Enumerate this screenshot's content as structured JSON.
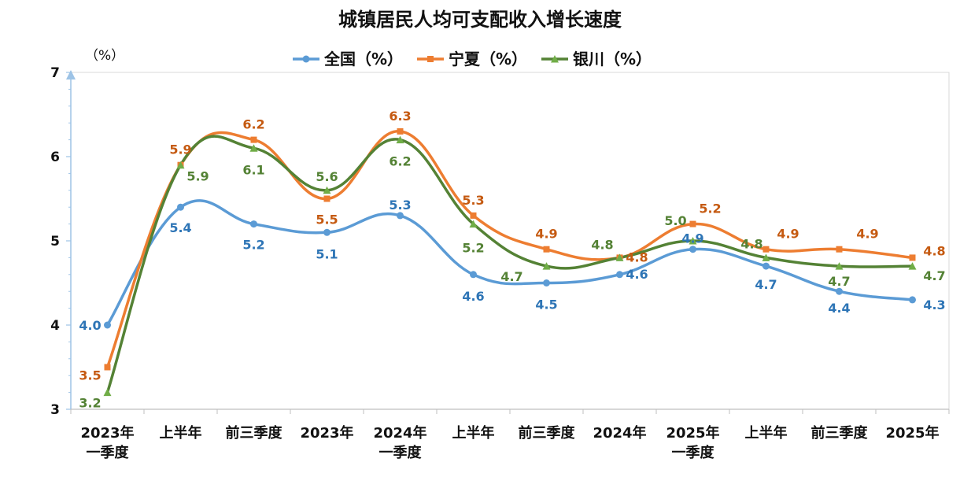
{
  "chart_data": {
    "type": "line",
    "title": "城镇居民人均可支配收入增长速度",
    "unit": "（%）",
    "ylim": [
      3,
      7
    ],
    "yticks": [
      "3",
      "4",
      "5",
      "6",
      "7"
    ],
    "categories": [
      [
        "2023年",
        "一季度"
      ],
      [
        "上半年"
      ],
      [
        "前三季度"
      ],
      [
        "2023年"
      ],
      [
        "2024年",
        "一季度"
      ],
      [
        "上半年"
      ],
      [
        "前三季度"
      ],
      [
        "2024年"
      ],
      [
        "2025年",
        "一季度"
      ],
      [
        "上半年"
      ],
      [
        "前三季度"
      ],
      [
        "2025年"
      ]
    ],
    "series": [
      {
        "name": "全国（%）",
        "color": "#5B9BD5",
        "label_color": "#2E75B6",
        "marker": "circle",
        "values": [
          4.0,
          5.4,
          5.2,
          5.1,
          5.3,
          4.6,
          4.5,
          4.6,
          4.9,
          4.7,
          4.4,
          4.3
        ],
        "labels": [
          "4.0",
          "5.4",
          "5.2",
          "5.1",
          "5.3",
          "4.6",
          "4.5",
          "4.6",
          "4.9",
          "4.7",
          "4.4",
          "4.3"
        ]
      },
      {
        "name": "宁夏（%）",
        "color": "#ED7D31",
        "label_color": "#C55A11",
        "marker": "square",
        "values": [
          3.5,
          5.9,
          6.2,
          5.5,
          6.3,
          5.3,
          4.9,
          4.8,
          5.2,
          4.9,
          4.9,
          4.8
        ],
        "labels": [
          "3.5",
          "5.9",
          "6.2",
          "5.5",
          "6.3",
          "5.3",
          "4.9",
          "4.8",
          "5.2",
          "4.9",
          "4.9",
          "4.8"
        ]
      },
      {
        "name": "银川（%）",
        "color": "#548235",
        "label_color": "#548235",
        "marker_color": "#70AD47",
        "marker": "triangle",
        "values": [
          3.2,
          5.9,
          6.1,
          5.6,
          6.2,
          5.2,
          4.7,
          4.8,
          5.0,
          4.8,
          4.7,
          4.7
        ],
        "labels": [
          "3.2",
          "5.9",
          "6.1",
          "5.6",
          "6.2",
          "5.2",
          "4.7",
          "4.8",
          "5.0",
          "4.8",
          "4.7",
          "4.7"
        ]
      }
    ]
  }
}
